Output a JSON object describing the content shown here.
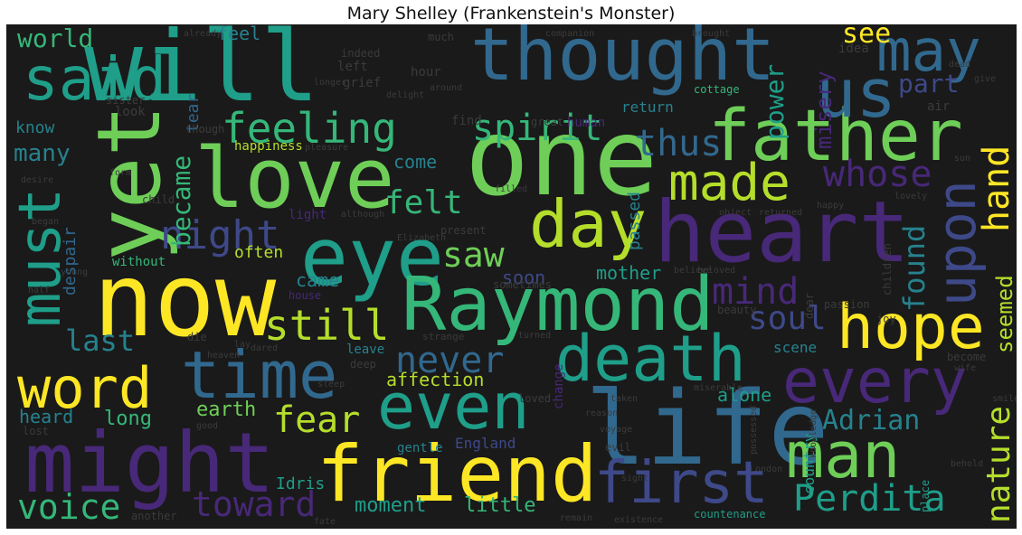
{
  "title": "Mary Shelley (Frankenstein's Monster)",
  "words": {
    "will": "will",
    "one": "one",
    "now": "now",
    "thought": "thought",
    "father": "father",
    "love": "love",
    "yet": "yet",
    "heart": "heart",
    "eye": "eye",
    "raymond": "Raymond",
    "life": "life",
    "might": "might",
    "friend": "friend",
    "must": "must",
    "said": "said",
    "us": "us",
    "may": "may",
    "day": "day",
    "time": "time",
    "word": "word",
    "even": "even",
    "death": "death",
    "hope": "hope",
    "every": "every",
    "man": "man",
    "first": "first",
    "upon": "upon",
    "made": "made",
    "feeling": "feeling",
    "night": "night",
    "still": "still",
    "never": "never",
    "spirit": "spirit",
    "mind": "mind",
    "saw": "saw",
    "whose": "whose",
    "thus": "thus",
    "perdita": "Perdita",
    "toward": "toward",
    "voice": "voice",
    "hand": "hand",
    "nature": "nature",
    "fear": "fear",
    "adrian": "Adrian",
    "felt": "felt",
    "soul": "soul",
    "world": "world",
    "see": "see",
    "part": "part",
    "found": "found",
    "last": "last",
    "became": "became",
    "power": "power",
    "misery": "misery",
    "seemed": "seemed",
    "long": "long",
    "many": "many",
    "affection": "affection",
    "moment": "moment",
    "little": "little",
    "earth": "earth",
    "heard": "heard",
    "came": "came",
    "soon": "soon",
    "mother": "mother",
    "alone": "alone",
    "idris": "Idris",
    "feel": "feel",
    "know": "know",
    "country": "country",
    "come": "come",
    "often": "often",
    "scene": "scene",
    "passed": "passed",
    "despair": "despair",
    "tear": "tear",
    "return": "return",
    "happiness": "happiness",
    "without": "without",
    "england": "England",
    "change": "change",
    "leave": "leave",
    "gentle": "gentle",
    "light": "light",
    "countenance": "countenance",
    "house": "house",
    "place": "place",
    "cottage": "cottage",
    "grief": "grief",
    "left": "left",
    "look": "look",
    "find": "find",
    "human": "human",
    "idea": "idea",
    "hour": "hour",
    "air": "air",
    "child": "child",
    "though": "though",
    "sister": "sister",
    "dear": "dear",
    "passion": "passion",
    "children": "children",
    "evil": "evil",
    "present": "present",
    "indeed": "indeed",
    "beauty": "beauty",
    "joy": "joy",
    "loved": "loved",
    "become": "become",
    "another": "another",
    "lost": "lost",
    "deep": "deep",
    "die": "die",
    "sometimes": "sometimes",
    "great": "great",
    "strange": "strange",
    "already": "already",
    "much": "much",
    "longer": "longer",
    "around": "around",
    "delight": "delight",
    "desire": "desire",
    "form": "form",
    "began": "began",
    "pleasure": "pleasure",
    "taken": "taken",
    "turned": "turned",
    "young": "young",
    "elizabeth": "Elizabeth",
    "heaven": "heaven",
    "although": "although",
    "half": "half",
    "believe": "believe",
    "object": "object",
    "returned": "returned",
    "happy": "happy",
    "companion": "companion",
    "brought": "brought",
    "sight": "sight",
    "good": "good",
    "miserable": "miserable",
    "wife": "wife",
    "behold": "behold",
    "beloved": "beloved",
    "possessed": "possessed",
    "knowledge": "knowledge",
    "london": "London",
    "give": "give",
    "dead": "dead",
    "love2": "lovely",
    "sun": "sun",
    "fate": "fate",
    "remain": "remain",
    "existence": "existence",
    "reason": "reason",
    "voyage": "voyage",
    "dared": "dared",
    "lay": "lay",
    "sleep": "sleep",
    "filled": "filled",
    "smile": "smile"
  }
}
